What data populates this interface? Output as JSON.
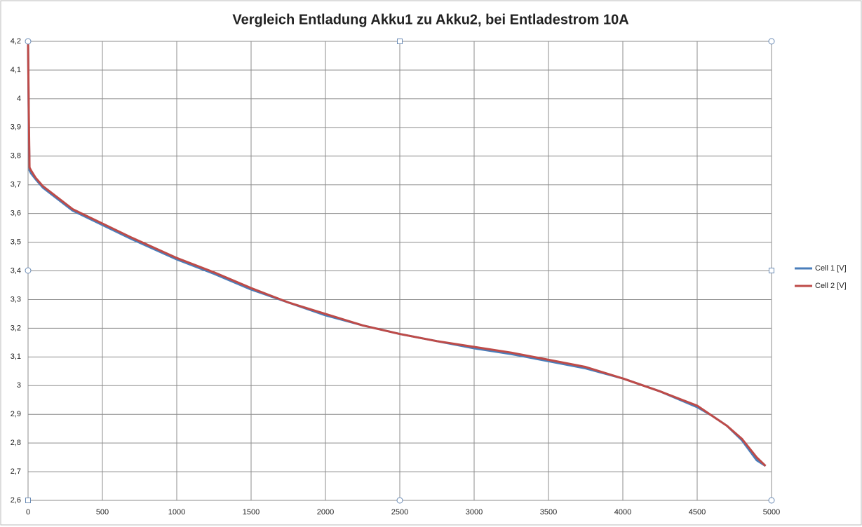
{
  "chart_data": {
    "type": "line",
    "title": "Vergleich Entladung Akku1 zu Akku2, bei Entladestrom 10A",
    "x": [
      0,
      5,
      10,
      20,
      50,
      100,
      200,
      300,
      400,
      500,
      700,
      1000,
      1250,
      1500,
      1750,
      2000,
      2250,
      2500,
      2750,
      3000,
      3250,
      3500,
      3750,
      4000,
      4250,
      4500,
      4600,
      4700,
      4800,
      4900,
      4960
    ],
    "series": [
      {
        "name": "Cell 1 [V]",
        "color": "#4a7ebb",
        "values": [
          4.2,
          3.9,
          3.75,
          3.74,
          3.72,
          3.69,
          3.65,
          3.61,
          3.585,
          3.56,
          3.51,
          3.44,
          3.39,
          3.335,
          3.29,
          3.245,
          3.21,
          3.18,
          3.155,
          3.13,
          3.11,
          3.085,
          3.06,
          3.025,
          2.98,
          2.925,
          2.895,
          2.86,
          2.81,
          2.74,
          2.72
        ]
      },
      {
        "name": "Cell 2 [V]",
        "color": "#be4b48",
        "values": [
          4.2,
          3.95,
          3.76,
          3.75,
          3.725,
          3.695,
          3.655,
          3.615,
          3.59,
          3.565,
          3.515,
          3.445,
          3.395,
          3.34,
          3.29,
          3.25,
          3.21,
          3.18,
          3.155,
          3.135,
          3.115,
          3.09,
          3.065,
          3.025,
          2.98,
          2.93,
          2.895,
          2.86,
          2.815,
          2.75,
          2.72
        ]
      }
    ],
    "xlim": [
      0,
      5000
    ],
    "xticks": [
      0,
      500,
      1000,
      1500,
      2000,
      2500,
      3000,
      3500,
      4000,
      4500,
      5000
    ],
    "ylim": [
      2.6,
      4.2
    ],
    "yticks": [
      {
        "value": 2.6,
        "label": "2,6"
      },
      {
        "value": 2.7,
        "label": "2,7"
      },
      {
        "value": 2.8,
        "label": "2,8"
      },
      {
        "value": 2.9,
        "label": "2,9"
      },
      3,
      {
        "value": 3.1,
        "label": "3,1"
      },
      {
        "value": 3.2,
        "label": "3,2"
      },
      {
        "value": 3.3,
        "label": "3,3"
      },
      {
        "value": 3.4,
        "label": "3,4"
      },
      {
        "value": 3.5,
        "label": "3,5"
      },
      {
        "value": 3.6,
        "label": "3,6"
      },
      {
        "value": 3.7,
        "label": "3,7"
      },
      {
        "value": 3.8,
        "label": "3,8"
      },
      {
        "value": 3.9,
        "label": "3,9"
      },
      4,
      {
        "value": 4.1,
        "label": "4,1"
      },
      {
        "value": 4.2,
        "label": "4,2"
      }
    ],
    "grid": true,
    "legend": "right"
  }
}
